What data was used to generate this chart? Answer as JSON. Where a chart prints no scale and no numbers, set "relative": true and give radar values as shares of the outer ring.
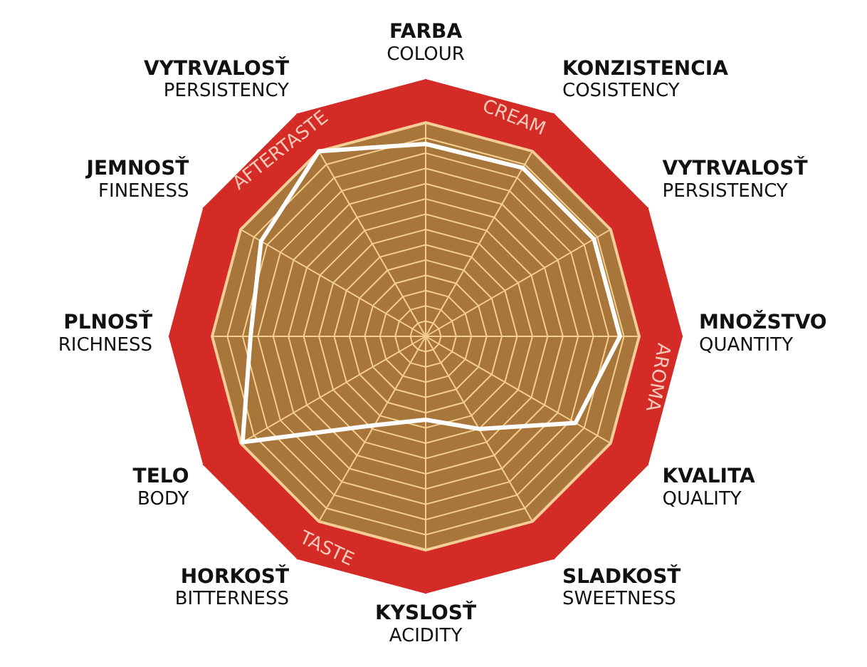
{
  "chart_data": {
    "type": "radar",
    "relative": true,
    "grid": true,
    "marker": "none",
    "categories": [
      "FARBA\nCOLOUR",
      "KONZISTENCIA\nCOSISTENCY",
      "VYTRVALOSŤ\nPERSISTENCY",
      "MNOŽSTVO\nQUANTITY",
      "KVALITA\nQUALITY",
      "SLADKOSŤ\nSWEETNESS",
      "KYSLOSŤ\nACIDITY",
      "HORKOSŤ\nBITTERNESS",
      "TELO\nBODY",
      "PLNOSŤ\nRICHNESS",
      "JEMNOSŤ\nFINENESS",
      "VYTRVALOSŤ\nPERSISTENCY"
    ],
    "series": [
      {
        "color": "#ffffff",
        "values": [
          0.9,
          0.91,
          0.91,
          0.91,
          0.81,
          0.5,
          0.39,
          0.48,
          0.99,
          0.82,
          0.89,
          1.0
        ]
      }
    ],
    "annotations": [
      "CREAM",
      "AROMA",
      "TASTE",
      "AFTERTASTE"
    ]
  }
}
